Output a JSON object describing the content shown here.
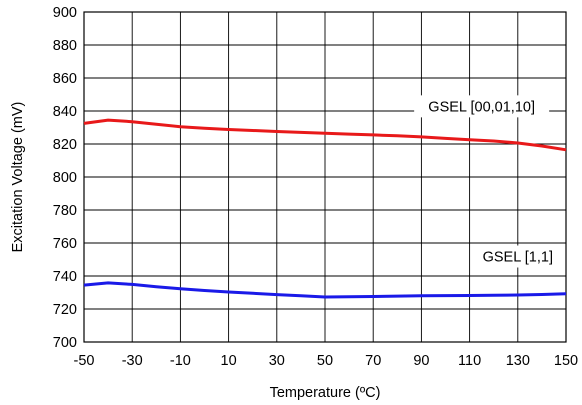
{
  "chart_data": {
    "type": "line",
    "xlabel": "Temperature (ºC)",
    "ylabel": "Excitation Voltage (mV)",
    "xlim": [
      -50,
      150
    ],
    "ylim": [
      700,
      900
    ],
    "x_ticks": [
      -50,
      -30,
      -10,
      10,
      30,
      50,
      70,
      90,
      110,
      130,
      150
    ],
    "y_ticks": [
      700,
      720,
      740,
      760,
      780,
      800,
      820,
      840,
      860,
      880,
      900
    ],
    "grid": true,
    "legend": "none",
    "series": [
      {
        "color": "#e8191a",
        "x": [
          -50,
          -40,
          -30,
          -20,
          -10,
          0,
          10,
          20,
          30,
          40,
          50,
          60,
          70,
          80,
          90,
          100,
          110,
          120,
          130,
          140,
          150
        ],
        "y": [
          832.5,
          834.5,
          833.5,
          832,
          830.5,
          829.5,
          828.8,
          828.2,
          827.6,
          827,
          826.5,
          826,
          825.5,
          825,
          824.3,
          823.4,
          822.6,
          821.8,
          820.6,
          818.8,
          816.5
        ]
      },
      {
        "color": "#1a1ae8",
        "x": [
          -50,
          -40,
          -30,
          -20,
          -10,
          0,
          10,
          20,
          30,
          40,
          50,
          60,
          70,
          80,
          90,
          100,
          110,
          120,
          130,
          140,
          150
        ],
        "y": [
          734.5,
          735.8,
          734.9,
          733.5,
          732.3,
          731.2,
          730.3,
          729.5,
          728.7,
          728,
          727.3,
          727.4,
          727.6,
          727.8,
          728,
          728.1,
          728.2,
          728.3,
          728.5,
          728.8,
          729.2
        ]
      }
    ],
    "annotations": [
      {
        "text": "GSEL [00,01,10]",
        "x": 115,
        "y": 841
      },
      {
        "text": "GSEL [1,1]",
        "x": 130,
        "y": 750
      }
    ]
  }
}
